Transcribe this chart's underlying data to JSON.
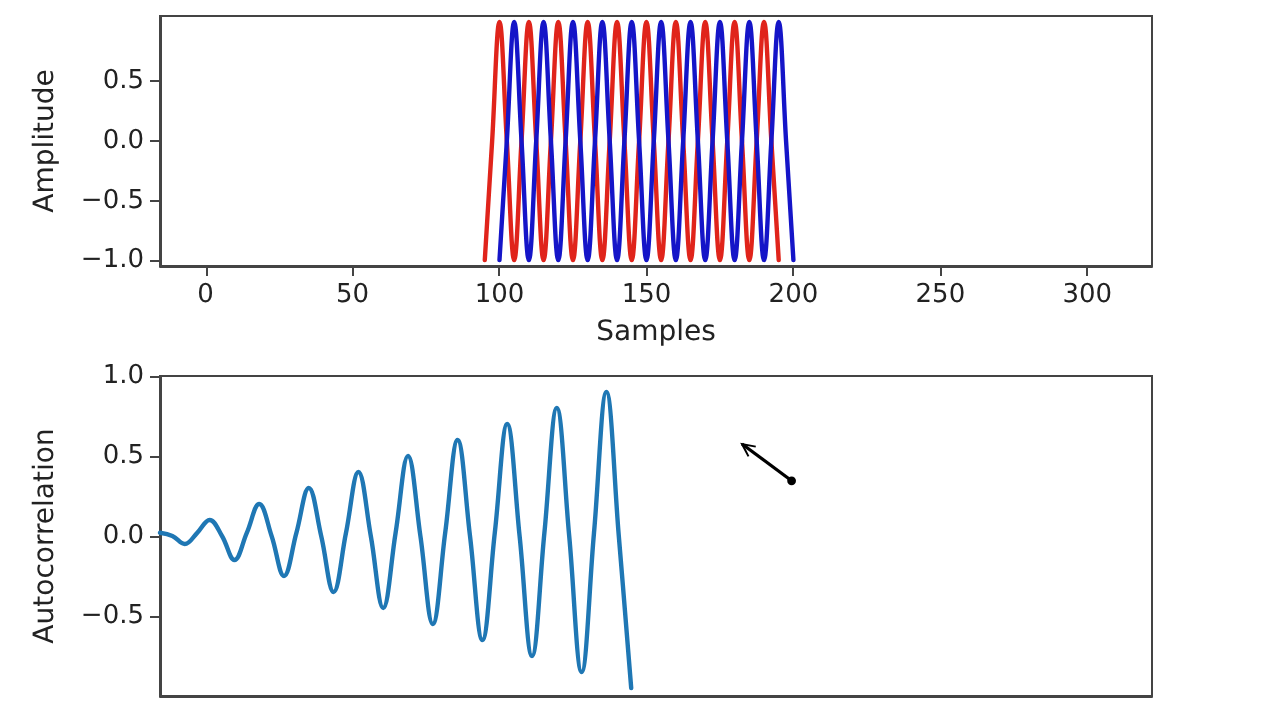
{
  "chart_data": [
    {
      "type": "line",
      "xlabel": "Samples",
      "ylabel": "Amplitude",
      "xlim": [
        -15.5,
        322
      ],
      "xticks": [
        0,
        50,
        100,
        150,
        200,
        250,
        300
      ],
      "ylim": [
        -1.05,
        1.05
      ],
      "yticks": [
        {
          "value": -1,
          "label": "−1.0"
        },
        {
          "value": -0.5,
          "label": "−0.5"
        },
        {
          "value": 0,
          "label": "0.0"
        },
        {
          "value": 0.5,
          "label": "0.5"
        }
      ],
      "series": [
        {
          "color": "#e0241b",
          "x": [
            95,
            97.5,
            100,
            102.5,
            105,
            107.5,
            110,
            112.5,
            115,
            117.5,
            120,
            122.5,
            125,
            127.5,
            130,
            132.5,
            135,
            137.5,
            140,
            142.5,
            145,
            147.5,
            150,
            152.5,
            155,
            157.5,
            160,
            162.5,
            165,
            167.5,
            170,
            172.5,
            175,
            177.5,
            180,
            182.5,
            185,
            187.5,
            190,
            192.5,
            195
          ],
          "values": [
            -1,
            0,
            1,
            0,
            -1,
            0,
            1,
            0,
            -1,
            0,
            1,
            0,
            -1,
            0,
            1,
            0,
            -1,
            0,
            1,
            0,
            -1,
            0,
            1,
            0,
            -1,
            0,
            1,
            0,
            -1,
            0,
            1,
            0,
            -1,
            0,
            1,
            0,
            -1,
            0,
            1,
            0,
            -1
          ]
        },
        {
          "color": "#1515c8",
          "x": [
            100,
            102.5,
            105,
            107.5,
            110,
            112.5,
            115,
            117.5,
            120,
            122.5,
            125,
            127.5,
            130,
            132.5,
            135,
            137.5,
            140,
            142.5,
            145,
            147.5,
            150,
            152.5,
            155,
            157.5,
            160,
            162.5,
            165,
            167.5,
            170,
            172.5,
            175,
            177.5,
            180,
            182.5,
            185,
            187.5,
            190,
            192.5,
            195,
            197.5,
            200
          ],
          "values": [
            -1,
            0,
            1,
            0,
            -1,
            0,
            1,
            0,
            -1,
            0,
            1,
            0,
            -1,
            0,
            1,
            0,
            -1,
            0,
            1,
            0,
            -1,
            0,
            1,
            0,
            -1,
            0,
            1,
            0,
            -1,
            0,
            1,
            0,
            -1,
            0,
            1,
            0,
            -1,
            0,
            1,
            0,
            -1
          ]
        }
      ]
    },
    {
      "type": "line",
      "ylabel": "Autocorrelation",
      "tick_labels": "y",
      "ylim": [
        -1,
        1
      ],
      "yticks": [
        {
          "value": -0.5,
          "label": "−0.5"
        },
        {
          "value": 0,
          "label": "0.0"
        },
        {
          "value": 0.5,
          "label": "0.5"
        },
        {
          "value": 1,
          "label": "1.0"
        }
      ],
      "categories": [
        null,
        null,
        null,
        null,
        null,
        null,
        null,
        null,
        null,
        null,
        null,
        null,
        null,
        null,
        null,
        null,
        null,
        null,
        null,
        null,
        null,
        null,
        null,
        null,
        null,
        null,
        null,
        null,
        null,
        null,
        null,
        null,
        null,
        null,
        null,
        null,
        null,
        null,
        null,
        null,
        null,
        null,
        null,
        null,
        null,
        null,
        null,
        null,
        null,
        null,
        null,
        null,
        null,
        null,
        null,
        null,
        null,
        null,
        null,
        null,
        null,
        null,
        null,
        null,
        null,
        null,
        null,
        null,
        null,
        null,
        null,
        null,
        null,
        null,
        null,
        null,
        null,
        null,
        null,
        null,
        null
      ],
      "series": [
        {
          "color": "#1f77b4",
          "values": [
            0.02,
            0.0,
            -0.05,
            0.02,
            0.1,
            0.0,
            -0.15,
            0.02,
            0.2,
            0.0,
            -0.25,
            0.02,
            0.3,
            0.0,
            -0.35,
            0.02,
            0.4,
            0.0,
            -0.45,
            0.02,
            0.5,
            0.0,
            -0.55,
            0.02,
            0.6,
            0.0,
            -0.65,
            0.02,
            0.7,
            0.0,
            -0.75,
            0.02,
            0.8,
            0.0,
            -0.85,
            0.02,
            0.9,
            0.0,
            -0.95,
            null,
            null,
            null,
            null,
            null,
            null,
            null,
            null,
            null,
            null,
            null,
            null,
            null,
            null,
            null,
            null,
            null,
            null,
            null,
            null,
            null,
            null,
            null,
            null,
            null,
            null,
            null,
            null,
            null,
            null,
            null,
            null,
            null,
            null,
            null,
            null,
            null,
            null,
            null,
            null,
            null,
            null
          ]
        }
      ]
    }
  ]
}
